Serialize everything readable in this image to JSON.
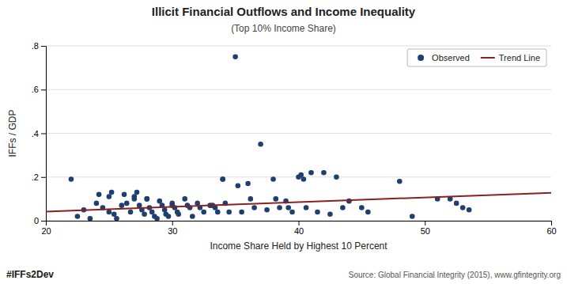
{
  "chart_data": {
    "type": "scatter",
    "title": "Illicit Financial Outflows and Income Inequality",
    "subtitle": "(Top 10% Income Share)",
    "xlabel": "Income Share Held by Highest 10 Percent",
    "ylabel": "IFFs / GDP",
    "annotations": [
      "#IFFs2Dev",
      "Source: Global Financial Integrity (2015), www.gfintegrity.org"
    ],
    "xlim": [
      20,
      60
    ],
    "ylim": [
      0,
      0.8
    ],
    "xticks": [
      20,
      30,
      40,
      50,
      60
    ],
    "yticks": [
      0,
      {
        "value": 0.2,
        "label": ".2"
      },
      {
        "value": 0.4,
        "label": ".4"
      },
      {
        "value": 0.6,
        "label": ".6"
      },
      {
        "value": 0.8,
        "label": ".8"
      }
    ],
    "grid": true,
    "legend": "upper right",
    "series": [
      {
        "name": "Observed",
        "type": "scatter",
        "color": "#1f3f6e",
        "x": [
          22.0,
          22.5,
          23.0,
          23.5,
          24.0,
          24.2,
          24.5,
          25.0,
          25.0,
          25.2,
          25.4,
          25.6,
          26.0,
          26.2,
          26.4,
          26.7,
          27.0,
          27.0,
          27.2,
          27.4,
          27.6,
          27.8,
          28.0,
          28.0,
          28.2,
          28.4,
          28.6,
          28.8,
          29.0,
          29.2,
          29.4,
          29.5,
          29.7,
          30.0,
          30.0,
          30.2,
          30.4,
          30.5,
          31.0,
          31.2,
          31.4,
          31.6,
          32.0,
          32.2,
          32.5,
          33.0,
          33.2,
          33.4,
          33.6,
          34.0,
          34.0,
          34.2,
          34.5,
          35.0,
          35.2,
          35.5,
          36.0,
          36.2,
          36.5,
          37.0,
          37.5,
          38.0,
          38.2,
          38.5,
          39.0,
          39.2,
          39.5,
          40.0,
          40.2,
          40.4,
          40.6,
          41.0,
          41.5,
          42.0,
          42.5,
          43.0,
          43.5,
          44.0,
          45.0,
          45.5,
          48.0,
          49.0,
          51.0,
          52.0,
          52.5,
          53.0,
          53.5
        ],
        "values": [
          0.19,
          0.02,
          0.05,
          0.01,
          0.08,
          0.12,
          0.06,
          0.04,
          0.11,
          0.13,
          0.03,
          0.01,
          0.07,
          0.12,
          0.08,
          0.04,
          0.11,
          0.1,
          0.13,
          0.07,
          0.05,
          0.03,
          0.1,
          0.1,
          0.06,
          0.04,
          0.02,
          0.01,
          0.09,
          0.07,
          0.05,
          0.03,
          0.02,
          0.08,
          0.07,
          0.06,
          0.04,
          0.03,
          0.1,
          0.07,
          0.06,
          0.02,
          0.08,
          0.06,
          0.04,
          0.07,
          0.07,
          0.06,
          0.04,
          0.19,
          0.19,
          0.08,
          0.04,
          0.75,
          0.16,
          0.04,
          0.17,
          0.1,
          0.06,
          0.35,
          0.05,
          0.19,
          0.1,
          0.06,
          0.09,
          0.06,
          0.04,
          0.2,
          0.21,
          0.19,
          0.06,
          0.22,
          0.04,
          0.22,
          0.03,
          0.2,
          0.06,
          0.09,
          0.06,
          0.04,
          0.18,
          0.02,
          0.1,
          0.1,
          0.08,
          0.06,
          0.05
        ]
      },
      {
        "name": "Trend Line",
        "type": "line",
        "color": "#8b2020",
        "x": [
          20,
          60
        ],
        "values": [
          0.042,
          0.128
        ]
      }
    ]
  }
}
